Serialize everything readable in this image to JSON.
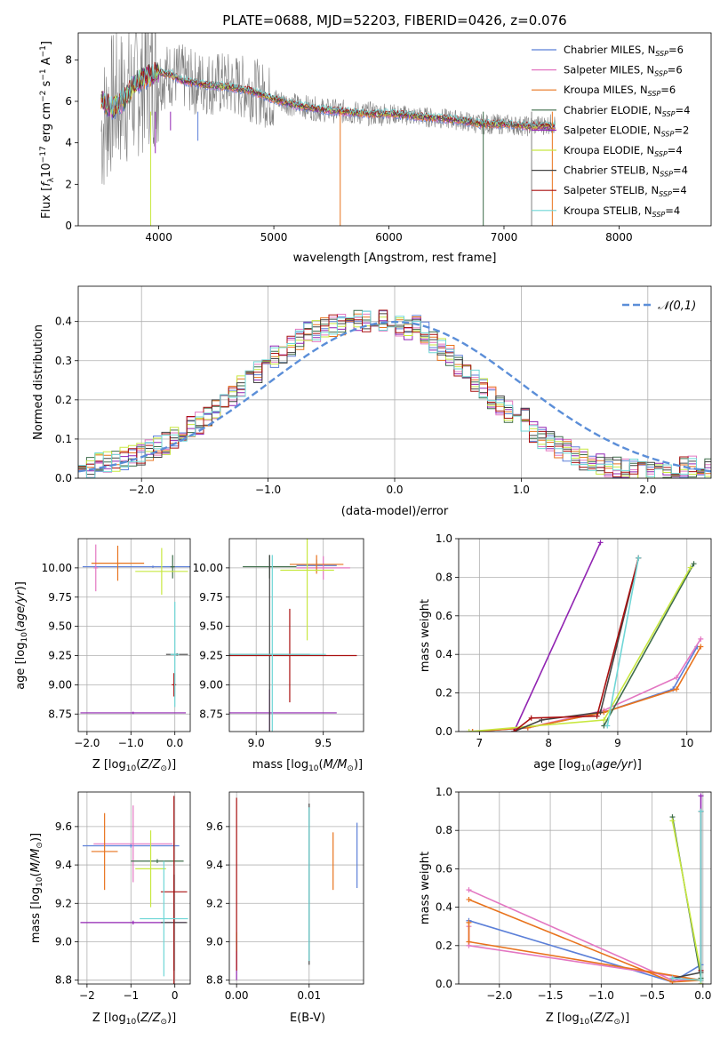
{
  "chart_data": [
    {
      "id": "spectrum",
      "type": "line",
      "title": "PLATE=0688, MJD=52203, FIBERID=0426, z=0.076",
      "xlabel": "wavelength [Angstrom, rest frame]",
      "ylabel": "Flux [f_λ 10^-17 erg cm^-2 s^-1 A^-1]",
      "xlim": [
        3300,
        8800
      ],
      "ylim": [
        0,
        9.3
      ],
      "xticks": [
        4000,
        5000,
        6000,
        7000,
        8000
      ],
      "yticks": [
        0,
        2,
        4,
        6,
        8
      ],
      "grid": false,
      "legend_placement": "top-right",
      "data_series": {
        "name": "",
        "color": "#808080",
        "x": [
          3500,
          3600,
          3700,
          3800,
          3900,
          4000,
          4100,
          4200,
          4300,
          4400,
          4600,
          4800,
          5000,
          5200,
          5400,
          5600,
          5800,
          6000,
          6200,
          6400,
          6600,
          6800,
          7000,
          7200,
          7400
        ],
        "y": [
          4.6,
          6.0,
          6.2,
          6.5,
          7.3,
          7.1,
          7.3,
          7.2,
          6.9,
          6.9,
          6.8,
          6.6,
          6.1,
          5.8,
          5.6,
          5.5,
          5.4,
          5.4,
          5.3,
          5.2,
          5.1,
          4.9,
          4.9,
          4.8,
          4.9
        ]
      },
      "model_x": [
        3500,
        3600,
        3700,
        3800,
        3900,
        4000,
        4100,
        4200,
        4300,
        4400,
        4600,
        4800,
        5000,
        5200,
        5400,
        5600,
        5800,
        6000,
        6200,
        6400,
        6600,
        6800,
        7000,
        7200,
        7400
      ],
      "model_y": [
        6.1,
        5.6,
        6.1,
        6.9,
        7.2,
        7.4,
        7.3,
        7.0,
        6.9,
        6.8,
        6.7,
        6.5,
        6.1,
        5.8,
        5.6,
        5.5,
        5.4,
        5.4,
        5.3,
        5.2,
        5.1,
        4.9,
        4.9,
        4.8,
        4.8
      ],
      "series": [
        {
          "name": "Chabrier MILES, N_SSP=6",
          "color": "#5b7fd8"
        },
        {
          "name": "Salpeter MILES, N_SSP=6",
          "color": "#e377c2"
        },
        {
          "name": "Kroupa MILES, N_SSP=6",
          "color": "#e8731d"
        },
        {
          "name": "Chabrier ELODIE, N_SSP=4",
          "color": "#3e6d4a"
        },
        {
          "name": "Salpeter ELODIE, N_SSP=2",
          "color": "#9124b2"
        },
        {
          "name": "Kroupa ELODIE, N_SSP=4",
          "color": "#c8e840"
        },
        {
          "name": "Chabrier STELIB, N_SSP=4",
          "color": "#444444"
        },
        {
          "name": "Salpeter STELIB, N_SSP=4",
          "color": "#aa1111"
        },
        {
          "name": "Kroupa STELIB, N_SSP=4",
          "color": "#6fd6d6"
        }
      ],
      "legend_labels": [
        {
          "base": "Chabrier MILES, N",
          "sub": "SSP",
          "tail": "=6"
        },
        {
          "base": "Salpeter MILES, N",
          "sub": "SSP",
          "tail": "=6"
        },
        {
          "base": "Kroupa MILES, N",
          "sub": "SSP",
          "tail": "=6"
        },
        {
          "base": "Chabrier ELODIE, N",
          "sub": "SSP",
          "tail": "=4"
        },
        {
          "base": "Salpeter ELODIE, N",
          "sub": "SSP",
          "tail": "=2"
        },
        {
          "base": "Kroupa ELODIE, N",
          "sub": "SSP",
          "tail": "=4"
        },
        {
          "base": "Chabrier STELIB, N",
          "sub": "SSP",
          "tail": "=4"
        },
        {
          "base": "Salpeter STELIB, N",
          "sub": "SSP",
          "tail": "=4"
        },
        {
          "base": "Kroupa STELIB, N",
          "sub": "SSP",
          "tail": "=4"
        }
      ],
      "ylabel_parts": {
        "a": "Flux [",
        "b": "f",
        "c": "λ",
        "d": "10",
        "e": "−17",
        "f": " erg cm",
        "g": "−2",
        "h": " s",
        "i": "−1",
        "j": " A",
        "k": "−1",
        "l": "]"
      }
    },
    {
      "id": "residuals",
      "type": "histogram",
      "xlabel": "(data-model)/error",
      "ylabel": "Normed distribution",
      "xlim": [
        -2.5,
        2.5
      ],
      "ylim": [
        0,
        0.49
      ],
      "xticks": [
        -2,
        -1,
        0,
        1,
        2
      ],
      "yticks": [
        0.0,
        0.1,
        0.2,
        0.3,
        0.4
      ],
      "grid": true,
      "legend_placement": "top-right",
      "legend_label": "𝒩(0,1)",
      "reference_curve": {
        "name": "𝒩(0,1)",
        "mean": 0,
        "sigma": 1,
        "color": "#5b8ed8"
      },
      "bin_width": 0.1,
      "bins_start": -2.5,
      "hist_base": [
        0.023,
        0.029,
        0.035,
        0.038,
        0.047,
        0.05,
        0.056,
        0.062,
        0.068,
        0.079,
        0.09,
        0.103,
        0.12,
        0.132,
        0.14,
        0.16,
        0.178,
        0.198,
        0.21,
        0.232,
        0.245,
        0.268,
        0.29,
        0.31,
        0.323,
        0.34,
        0.355,
        0.37,
        0.376,
        0.383,
        0.39,
        0.392,
        0.397,
        0.4,
        0.398,
        0.397,
        0.4,
        0.41,
        0.39,
        0.38,
        0.395,
        0.37,
        0.35,
        0.33,
        0.315,
        0.29,
        0.27,
        0.25,
        0.232,
        0.205,
        0.19,
        0.17,
        0.16,
        0.15,
        0.12,
        0.105,
        0.09,
        0.08,
        0.07,
        0.06,
        0.05,
        0.045,
        0.035,
        0.028,
        0.025,
        0.022,
        0.02,
        0.018,
        0.015,
        0.01,
        0.01,
        0.012,
        0.025,
        0.03,
        0.028,
        0.026,
        0.024
      ],
      "series_colors": [
        "#5b7fd8",
        "#e377c2",
        "#e8731d",
        "#3e6d4a",
        "#9124b2",
        "#c8e840",
        "#444444",
        "#aa1111",
        "#6fd6d6"
      ]
    },
    {
      "id": "age_vs_Z",
      "type": "errorbar",
      "xlabel": "Z [log10(Z/Z⊙)]",
      "ylabel": "age [log10(age/yr)]",
      "xlim": [
        -2.2,
        0.35
      ],
      "ylim": [
        8.6,
        10.25
      ],
      "xticks": [
        -2,
        -1,
        0
      ],
      "yticks": [
        8.75,
        9.0,
        9.25,
        9.5,
        9.75,
        10.0
      ],
      "grid": true,
      "points": [
        {
          "x": -0.5,
          "xerr": 1.6,
          "y": 10.01,
          "yerr": 0.01,
          "c": "#5b7fd8"
        },
        {
          "x": -1.8,
          "xerr": 0.05,
          "y": 10.0,
          "yerr": 0.2,
          "c": "#e377c2"
        },
        {
          "x": -1.3,
          "xerr": 0.6,
          "y": 10.04,
          "yerr": 0.15,
          "c": "#e8731d"
        },
        {
          "x": -0.05,
          "xerr": 0.05,
          "y": 10.01,
          "yerr": 0.1,
          "c": "#3e6d4a"
        },
        {
          "x": -0.95,
          "xerr": 1.2,
          "y": 8.76,
          "yerr": 0.01,
          "c": "#9124b2"
        },
        {
          "x": -0.3,
          "xerr": 0.6,
          "y": 9.97,
          "yerr": 0.2,
          "c": "#c8e840"
        },
        {
          "x": 0.05,
          "xerr": 0.25,
          "y": 9.26,
          "yerr": 0.01,
          "c": "#444444"
        },
        {
          "x": -0.02,
          "xerr": 0.05,
          "y": 9.0,
          "yerr": 0.1,
          "c": "#aa1111"
        },
        {
          "x": 0.0,
          "xerr": 0.1,
          "y": 9.26,
          "yerr": 0.45,
          "c": "#6fd6d6"
        }
      ],
      "xlabel_parts": {
        "a": "Z [log",
        "sub": "10",
        "b": "(",
        "it": "Z/Z",
        "sub2": "⊙",
        "c": ")]"
      },
      "ylabel_parts": {
        "a": "age  [log",
        "sub": "10",
        "b": "(",
        "it": "age/yr",
        "c": ")]"
      }
    },
    {
      "id": "age_vs_mass",
      "type": "errorbar",
      "xlabel": "mass [log10(M/M⊙)]",
      "ylabel": "",
      "xlim": [
        8.8,
        9.8
      ],
      "ylim": [
        8.6,
        10.25
      ],
      "xticks": [
        9.0,
        9.5
      ],
      "yticks": [
        8.75,
        9.0,
        9.25,
        9.5,
        9.75,
        10.0
      ],
      "grid": true,
      "points": [
        {
          "x": 9.45,
          "xerr": 0.15,
          "y": 10.02,
          "yerr": 0.05,
          "c": "#5b7fd8"
        },
        {
          "x": 9.5,
          "xerr": 0.2,
          "y": 10.0,
          "yerr": 0.1,
          "c": "#e377c2"
        },
        {
          "x": 9.45,
          "xerr": 0.2,
          "y": 10.03,
          "yerr": 0.08,
          "c": "#e8731d"
        },
        {
          "x": 9.1,
          "xerr": 0.2,
          "y": 10.01,
          "yerr": 0.1,
          "c": "#3e6d4a"
        },
        {
          "x": 9.1,
          "xerr": 0.5,
          "y": 8.76,
          "yerr": 0.2,
          "c": "#9124b2"
        },
        {
          "x": 9.38,
          "xerr": 0.2,
          "y": 9.98,
          "yerr": 0.6,
          "c": "#c8e840"
        },
        {
          "x": 9.1,
          "xerr": 0.3,
          "y": 9.26,
          "yerr": 0.85,
          "c": "#444444"
        },
        {
          "x": 9.25,
          "xerr": 0.5,
          "y": 9.25,
          "yerr": 0.4,
          "c": "#aa1111"
        },
        {
          "x": 9.12,
          "xerr": 0.4,
          "y": 9.26,
          "yerr": 0.85,
          "c": "#6fd6d6"
        }
      ],
      "xlabel_parts": {
        "a": "mass [log",
        "sub": "10",
        "b": "(",
        "it": "M/M",
        "sub2": "⊙",
        "c": ")]"
      }
    },
    {
      "id": "weight_vs_age",
      "type": "line",
      "xlabel": "age [log10(age/yr)]",
      "ylabel": "mass weight",
      "xlim": [
        6.7,
        10.35
      ],
      "ylim": [
        0,
        1.0
      ],
      "xticks": [
        7,
        8,
        9,
        10
      ],
      "yticks": [
        0.0,
        0.2,
        0.4,
        0.6,
        0.8,
        1.0
      ],
      "grid": true,
      "series": [
        {
          "name": "Chabrier MILES",
          "c": "#5b7fd8",
          "x": [
            6.9,
            7.7,
            8.8,
            9.8,
            10.15
          ],
          "y": [
            0.0,
            0.02,
            0.1,
            0.22,
            0.44
          ]
        },
        {
          "name": "Salpeter MILES",
          "c": "#e377c2",
          "x": [
            6.9,
            7.7,
            8.8,
            9.85,
            10.2
          ],
          "y": [
            0.0,
            0.02,
            0.11,
            0.28,
            0.48
          ]
        },
        {
          "name": "Kroupa MILES",
          "c": "#e8731d",
          "x": [
            6.9,
            7.7,
            8.8,
            9.85,
            10.2
          ],
          "y": [
            0.0,
            0.02,
            0.1,
            0.22,
            0.44
          ]
        },
        {
          "name": "Chabrier ELODIE",
          "c": "#3e6d4a",
          "x": [
            8.8,
            10.1
          ],
          "y": [
            0.03,
            0.87
          ]
        },
        {
          "name": "Salpeter ELODIE",
          "c": "#9124b2",
          "x": [
            7.5,
            8.75
          ],
          "y": [
            0.0,
            0.98
          ]
        },
        {
          "name": "Kroupa ELODIE",
          "c": "#c8e840",
          "x": [
            6.85,
            8.8,
            10.05
          ],
          "y": [
            0.0,
            0.06,
            0.85
          ]
        },
        {
          "name": "Chabrier STELIB",
          "c": "#444444",
          "x": [
            7.5,
            7.9,
            8.75,
            9.3
          ],
          "y": [
            0.0,
            0.06,
            0.1,
            0.9
          ]
        },
        {
          "name": "Salpeter STELIB",
          "c": "#aa1111",
          "x": [
            7.5,
            7.75,
            8.7,
            9.3
          ],
          "y": [
            0.0,
            0.07,
            0.08,
            0.9
          ]
        },
        {
          "name": "Kroupa STELIB",
          "c": "#6fd6d6",
          "x": [
            8.85,
            9.3
          ],
          "y": [
            0.03,
            0.9
          ]
        }
      ],
      "xlabel_parts": {
        "a": "age  [log",
        "sub": "10",
        "b": "(",
        "it": "age/yr",
        "c": ")]"
      }
    },
    {
      "id": "mass_vs_Z",
      "type": "errorbar",
      "xlabel": "Z [log10(Z/Z⊙)]",
      "ylabel": "mass [log10(M/M⊙)]",
      "xlim": [
        -2.2,
        0.35
      ],
      "ylim": [
        8.78,
        9.78
      ],
      "xticks": [
        -2,
        -1,
        0
      ],
      "yticks": [
        8.8,
        9.0,
        9.2,
        9.4,
        9.6
      ],
      "grid": true,
      "points": [
        {
          "x": -1.0,
          "xerr": 1.1,
          "y": 9.5,
          "yerr": 0.01,
          "c": "#5b7fd8"
        },
        {
          "x": -0.95,
          "xerr": 0.9,
          "y": 9.51,
          "yerr": 0.2,
          "c": "#e377c2"
        },
        {
          "x": -1.6,
          "xerr": 0.3,
          "y": 9.47,
          "yerr": 0.2,
          "c": "#e8731d"
        },
        {
          "x": -0.4,
          "xerr": 0.6,
          "y": 9.42,
          "yerr": 0.01,
          "c": "#3e6d4a"
        },
        {
          "x": -0.95,
          "xerr": 1.2,
          "y": 9.1,
          "yerr": 0.01,
          "c": "#9124b2"
        },
        {
          "x": -0.55,
          "xerr": 0.35,
          "y": 9.38,
          "yerr": 0.2,
          "c": "#c8e840"
        },
        {
          "x": -0.02,
          "xerr": 0.3,
          "y": 9.1,
          "yerr": 0.25,
          "c": "#444444"
        },
        {
          "x": -0.02,
          "xerr": 0.3,
          "y": 9.26,
          "yerr": 0.5,
          "c": "#aa1111"
        },
        {
          "x": -0.25,
          "xerr": 0.55,
          "y": 9.12,
          "yerr": 0.3,
          "c": "#6fd6d6"
        }
      ],
      "xlabel_parts": {
        "a": "Z [log",
        "sub": "10",
        "b": "(",
        "it": "Z/Z",
        "sub2": "⊙",
        "c": ")]"
      },
      "ylabel_parts": {
        "a": "mass [log",
        "sub": "10",
        "b": "(",
        "it": "M/M",
        "sub2": "⊙",
        "c": ")]"
      }
    },
    {
      "id": "mass_vs_EBV",
      "type": "errorbar",
      "xlabel": "E(B-V)",
      "ylabel": "",
      "xlim": [
        -0.001,
        0.0175
      ],
      "ylim": [
        8.78,
        9.78
      ],
      "xticks": [
        0.0,
        0.01
      ],
      "yticks": [
        8.8,
        9.0,
        9.2,
        9.4,
        9.6
      ],
      "grid": true,
      "points": [
        {
          "x": 0.0166,
          "xerr": 0.0,
          "y": 9.45,
          "yerr": 0.17,
          "c": "#5b7fd8"
        },
        {
          "x": 0.0133,
          "xerr": 0.0,
          "y": 9.42,
          "yerr": 0.15,
          "c": "#e8731d"
        },
        {
          "x": 0.0,
          "xerr": 0.0,
          "y": 8.9,
          "yerr": 0.1,
          "c": "#9124b2"
        },
        {
          "x": 0.0,
          "xerr": 0.0,
          "y": 9.0,
          "yerr": 0.05,
          "c": "#c8e840"
        },
        {
          "x": 0.0,
          "xerr": 0.0,
          "y": 9.3,
          "yerr": 0.45,
          "c": "#aa1111"
        },
        {
          "x": 0.01,
          "xerr": 0.0,
          "y": 9.3,
          "yerr": 0.42,
          "c": "#444444"
        },
        {
          "x": 0.01,
          "xerr": 0.0,
          "y": 9.3,
          "yerr": 0.4,
          "c": "#6fd6d6"
        }
      ]
    },
    {
      "id": "weight_vs_Z",
      "type": "line",
      "xlabel": "Z [log10(Z/Z⊙)]",
      "ylabel": "mass weight",
      "xlim": [
        -2.4,
        0.08
      ],
      "ylim": [
        0,
        1.0
      ],
      "xticks": [
        -2.0,
        -1.5,
        -1.0,
        -0.5,
        0.0
      ],
      "yticks": [
        0.0,
        0.2,
        0.4,
        0.6,
        0.8,
        1.0
      ],
      "grid": true,
      "series": [
        {
          "name": "Chabrier MILES",
          "c": "#5b7fd8",
          "x": [
            -2.3,
            -0.3,
            -0.02
          ],
          "y": [
            0.33,
            0.01,
            0.1
          ]
        },
        {
          "name": "Salpeter MILES",
          "c": "#e377c2",
          "x": [
            -2.3,
            -0.3,
            -0.02,
            -2.3,
            -2.3
          ],
          "y": [
            0.49,
            0.02,
            0.02,
            0.2,
            0.3
          ]
        },
        {
          "name": "Kroupa MILES",
          "c": "#e8731d",
          "x": [
            -2.3,
            -0.3,
            -0.02,
            -2.3,
            -2.3
          ],
          "y": [
            0.44,
            0.01,
            0.02,
            0.22,
            0.32
          ]
        },
        {
          "name": "Chabrier ELODIE",
          "c": "#3e6d4a",
          "x": [
            -0.3,
            -0.02,
            -0.02
          ],
          "y": [
            0.87,
            0.03,
            0.0
          ]
        },
        {
          "name": "Salpeter ELODIE",
          "c": "#9124b2",
          "x": [
            -0.02,
            -0.02
          ],
          "y": [
            0.0,
            0.98
          ]
        },
        {
          "name": "Kroupa ELODIE",
          "c": "#c8e840",
          "x": [
            -0.3,
            -0.02,
            -0.02
          ],
          "y": [
            0.85,
            0.06,
            0.0
          ]
        },
        {
          "name": "Chabrier STELIB",
          "c": "#444444",
          "x": [
            -0.02,
            -0.02,
            -0.3
          ],
          "y": [
            0.9,
            0.06,
            0.03
          ]
        },
        {
          "name": "Salpeter STELIB",
          "c": "#aa1111",
          "x": [
            -0.02,
            -0.02
          ],
          "y": [
            0.07,
            0.9
          ]
        },
        {
          "name": "Kroupa STELIB",
          "c": "#6fd6d6",
          "x": [
            -0.02,
            -0.02,
            -0.3
          ],
          "y": [
            0.9,
            0.02,
            0.03
          ]
        }
      ],
      "xlabel_parts": {
        "a": "Z [log",
        "sub": "10",
        "b": "(",
        "it": "Z/Z",
        "sub2": "⊙",
        "c": ")]"
      }
    }
  ]
}
